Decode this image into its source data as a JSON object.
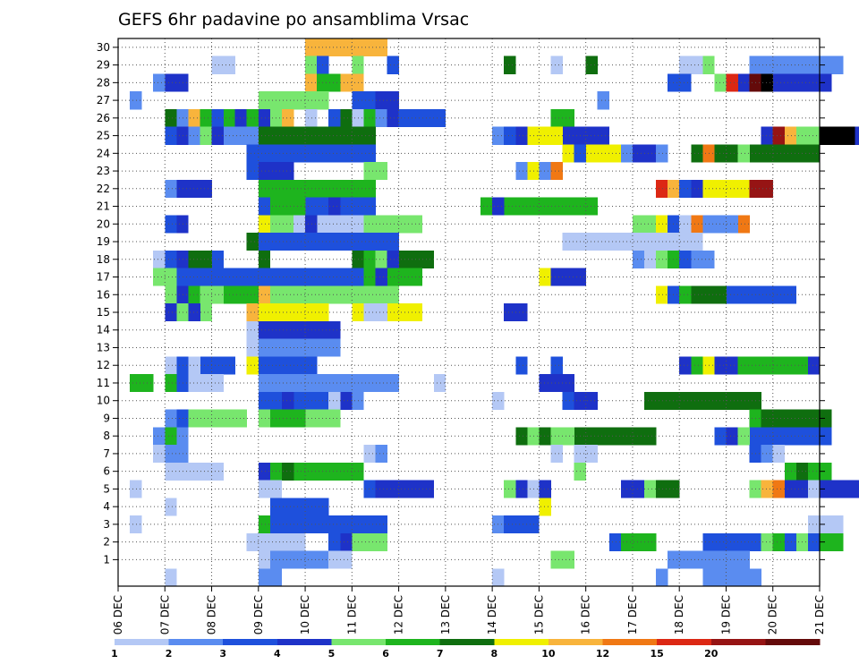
{
  "chart_data": {
    "type": "heatmap",
    "title": "GEFS 6hr padavine po ansamblima Vrsac",
    "xlabel": "",
    "ylabel": "",
    "x_ticks": [
      "06 DEC",
      "07 DEC",
      "08 DEC",
      "09 DEC",
      "10 DEC",
      "11 DEC",
      "12 DEC",
      "13 DEC",
      "14 DEC",
      "15 DEC",
      "16 DEC",
      "17 DEC",
      "18 DEC",
      "19 DEC",
      "20 DEC",
      "21 DEC"
    ],
    "y_ticks": [
      1,
      2,
      3,
      4,
      5,
      6,
      7,
      8,
      9,
      10,
      11,
      12,
      13,
      14,
      15,
      16,
      17,
      18,
      19,
      20,
      21,
      22,
      23,
      24,
      25,
      26,
      27,
      28,
      29,
      30
    ],
    "x_range_days": [
      0,
      15
    ],
    "time_step_hours": 6,
    "y_range": [
      0,
      30
    ],
    "grid": "dotted",
    "colorbar": {
      "levels": [
        1,
        2,
        3,
        4,
        5,
        6,
        7,
        8,
        10,
        12,
        15,
        20
      ],
      "colors": [
        "#b4c8f5",
        "#5a8cf0",
        "#1e50dc",
        "#1e32c8",
        "#78e66e",
        "#1eb41e",
        "#0f6e0f",
        "#f0f000",
        "#f8b43c",
        "#f07814",
        "#dc2814",
        "#961414",
        "#640a0a"
      ]
    },
    "cells": [
      [
        30,
        9,
        4,
        7
      ],
      [
        30,
        9,
        4.25,
        1
      ],
      [
        29,
        1,
        2,
        1
      ],
      [
        29,
        1,
        2.25,
        1
      ],
      [
        29,
        9,
        4,
        2
      ],
      [
        29,
        5,
        4,
        1
      ],
      [
        29,
        3,
        5.75,
        1
      ],
      [
        29,
        3,
        4.25,
        1
      ],
      [
        29,
        5,
        5,
        1
      ],
      [
        29,
        7,
        8.25,
        1
      ],
      [
        29,
        1,
        9.25,
        1
      ],
      [
        29,
        7,
        10,
        1
      ],
      [
        29,
        1,
        12,
        2
      ],
      [
        29,
        5,
        12.5,
        1
      ],
      [
        29,
        2,
        13.5,
        6
      ],
      [
        29,
        2,
        13.75,
        7
      ],
      [
        28,
        2,
        0.75,
        2
      ],
      [
        28,
        4,
        1,
        2
      ],
      [
        28,
        9,
        4,
        5
      ],
      [
        28,
        6,
        4.25,
        2
      ],
      [
        28,
        3,
        11.75,
        2
      ],
      [
        28,
        5,
        12.75,
        1
      ],
      [
        28,
        4,
        13,
        9
      ],
      [
        28,
        11,
        13,
        1
      ],
      [
        28,
        13,
        13.5,
        1
      ],
      [
        28,
        14,
        13.75,
        1
      ],
      [
        27,
        2,
        0.25,
        1
      ],
      [
        27,
        5,
        3,
        6
      ],
      [
        27,
        3,
        5,
        3
      ],
      [
        27,
        4,
        5.5,
        1
      ],
      [
        27,
        4,
        5.75,
        1
      ],
      [
        27,
        2,
        10.25,
        1
      ],
      [
        26,
        7,
        1,
        1
      ],
      [
        26,
        2,
        1.25,
        3
      ],
      [
        26,
        9,
        1.5,
        9
      ],
      [
        26,
        6,
        1.75,
        3
      ],
      [
        26,
        3,
        2,
        1
      ],
      [
        26,
        4,
        2.5,
        1
      ],
      [
        26,
        6,
        2.75,
        1
      ],
      [
        26,
        4,
        3,
        1
      ],
      [
        26,
        5,
        3.25,
        1
      ],
      [
        26,
        1,
        4,
        1
      ],
      [
        26,
        3,
        4.5,
        10
      ],
      [
        26,
        7,
        4.75,
        5
      ],
      [
        26,
        1,
        5,
        1
      ],
      [
        26,
        6,
        5.25,
        1
      ],
      [
        26,
        2,
        5.5,
        1
      ],
      [
        26,
        4,
        5.75,
        2
      ],
      [
        26,
        3,
        6,
        3
      ],
      [
        26,
        6,
        9.25,
        2
      ],
      [
        25,
        3,
        1,
        1
      ],
      [
        25,
        4,
        1.25,
        1
      ],
      [
        25,
        2,
        1.5,
        8
      ],
      [
        25,
        5,
        1.75,
        1
      ],
      [
        25,
        4,
        2,
        1
      ],
      [
        25,
        7,
        3,
        10
      ],
      [
        25,
        2,
        8,
        1
      ],
      [
        25,
        3,
        8.25,
        1
      ],
      [
        25,
        4,
        8.5,
        8
      ],
      [
        25,
        8,
        8.75,
        3
      ],
      [
        25,
        4,
        13.75,
        10
      ],
      [
        25,
        12,
        14,
        6
      ],
      [
        25,
        9,
        14.25,
        3
      ],
      [
        25,
        5,
        14.5,
        2
      ],
      [
        25,
        16,
        15,
        3
      ],
      [
        24,
        3,
        2.75,
        2
      ],
      [
        24,
        3,
        3,
        10
      ],
      [
        24,
        8,
        9.5,
        6
      ],
      [
        24,
        3,
        9.75,
        1
      ],
      [
        24,
        2,
        10.75,
        1
      ],
      [
        24,
        4,
        11,
        2
      ],
      [
        24,
        2,
        11.5,
        1
      ],
      [
        24,
        7,
        12.25,
        11
      ],
      [
        24,
        10,
        12.5,
        1
      ],
      [
        24,
        5,
        13.25,
        1
      ],
      [
        23,
        3,
        2.75,
        1
      ],
      [
        23,
        4,
        3,
        3
      ],
      [
        23,
        5,
        5.25,
        2
      ],
      [
        23,
        2,
        8.5,
        1
      ],
      [
        23,
        8,
        8.75,
        3
      ],
      [
        23,
        2,
        9,
        1
      ],
      [
        23,
        10,
        9.25,
        1
      ],
      [
        22,
        2,
        1,
        1
      ],
      [
        22,
        4,
        1.25,
        3
      ],
      [
        22,
        6,
        3,
        10
      ],
      [
        22,
        11,
        11.5,
        3
      ],
      [
        22,
        9,
        11.75,
        2
      ],
      [
        22,
        3,
        12,
        1
      ],
      [
        22,
        4,
        12.25,
        2
      ],
      [
        22,
        8,
        12.5,
        5
      ],
      [
        22,
        12,
        13.5,
        2
      ],
      [
        21,
        3,
        3,
        10
      ],
      [
        21,
        6,
        3.25,
        3
      ],
      [
        21,
        4,
        4.5,
        2
      ],
      [
        21,
        3,
        4.75,
        1
      ],
      [
        21,
        6,
        7.75,
        10
      ],
      [
        21,
        4,
        8,
        1
      ],
      [
        20,
        3,
        1,
        1
      ],
      [
        20,
        4,
        1.25,
        1
      ],
      [
        20,
        8,
        3,
        3
      ],
      [
        20,
        5,
        3.25,
        13
      ],
      [
        20,
        5,
        3.5,
        11
      ],
      [
        20,
        1,
        3.75,
        6
      ],
      [
        20,
        4,
        4,
        1
      ],
      [
        20,
        5,
        11,
        1
      ],
      [
        20,
        5,
        11.25,
        5
      ],
      [
        20,
        8,
        11.5,
        3
      ],
      [
        20,
        3,
        11.75,
        2
      ],
      [
        20,
        1,
        12,
        3
      ],
      [
        20,
        10,
        12.25,
        5
      ],
      [
        20,
        2,
        12.5,
        3
      ],
      [
        19,
        7,
        2.75,
        2
      ],
      [
        19,
        3,
        3,
        12
      ],
      [
        19,
        1,
        9.5,
        5
      ],
      [
        19,
        1,
        9.75,
        11
      ],
      [
        19,
        1,
        10,
        1
      ],
      [
        18,
        1,
        0.75,
        2
      ],
      [
        18,
        3,
        1,
        5
      ],
      [
        18,
        4,
        1.25,
        1
      ],
      [
        18,
        7,
        1.5,
        2
      ],
      [
        18,
        7,
        3,
        1
      ],
      [
        18,
        7,
        5,
        7
      ],
      [
        18,
        6,
        5.25,
        2
      ],
      [
        18,
        5,
        5.5,
        2
      ],
      [
        18,
        4,
        5.75,
        1
      ],
      [
        18,
        2,
        11,
        3
      ],
      [
        18,
        1,
        11.25,
        2
      ],
      [
        18,
        5,
        11.5,
        1
      ],
      [
        18,
        6,
        11.75,
        1
      ],
      [
        18,
        3,
        12,
        1
      ],
      [
        18,
        2,
        12.25,
        2
      ],
      [
        17,
        5,
        0.75,
        2
      ],
      [
        17,
        5,
        1,
        3
      ],
      [
        17,
        3,
        1.25,
        7
      ],
      [
        17,
        3,
        3,
        10
      ],
      [
        17,
        3,
        5,
        3
      ],
      [
        17,
        6,
        5.25,
        5
      ],
      [
        17,
        4,
        5.5,
        1
      ],
      [
        17,
        8,
        9,
        2
      ],
      [
        17,
        4,
        9.25,
        3
      ],
      [
        16,
        5,
        1,
        1
      ],
      [
        16,
        4,
        1.25,
        6
      ],
      [
        16,
        6,
        1.5,
        8
      ],
      [
        16,
        5,
        1.75,
        2
      ],
      [
        16,
        9,
        3,
        12
      ],
      [
        16,
        5,
        3.25,
        11
      ],
      [
        16,
        5,
        3.5,
        1
      ],
      [
        16,
        8,
        11.5,
        10
      ],
      [
        16,
        3,
        11.75,
        11
      ],
      [
        16,
        6,
        12,
        1
      ],
      [
        16,
        7,
        12.25,
        3
      ],
      [
        15,
        4,
        1,
        1
      ],
      [
        15,
        5,
        1.25,
        3
      ],
      [
        15,
        4,
        1.5,
        1
      ],
      [
        15,
        9,
        2.75,
        5
      ],
      [
        15,
        8,
        3,
        6
      ],
      [
        15,
        8,
        5,
        6
      ],
      [
        15,
        1,
        5.25,
        2
      ],
      [
        15,
        4,
        8.25,
        2
      ],
      [
        14,
        1,
        2.75,
        5
      ],
      [
        14,
        4,
        3,
        7
      ],
      [
        13,
        1,
        2.75,
        6
      ],
      [
        13,
        2,
        3,
        7
      ],
      [
        12,
        1,
        1,
        2
      ],
      [
        12,
        3,
        1.25,
        5
      ],
      [
        12,
        1,
        1.5,
        1
      ],
      [
        12,
        8,
        2.75,
        1
      ],
      [
        12,
        3,
        3,
        5
      ],
      [
        12,
        3,
        8.5,
        1
      ],
      [
        12,
        3,
        9.25,
        1
      ],
      [
        12,
        4,
        12,
        7
      ],
      [
        12,
        6,
        12.25,
        11
      ],
      [
        12,
        8,
        12.5,
        10
      ],
      [
        12,
        4,
        12.75,
        9
      ],
      [
        12,
        6,
        13.25,
        1
      ],
      [
        12,
        6,
        13.5,
        5
      ],
      [
        11,
        6,
        0.25,
        2
      ],
      [
        11,
        6,
        1,
        1
      ],
      [
        11,
        3,
        1.25,
        3
      ],
      [
        11,
        1,
        1.5,
        3
      ],
      [
        11,
        2,
        3,
        12
      ],
      [
        11,
        2,
        3.25,
        2
      ],
      [
        11,
        1,
        6.75,
        1
      ],
      [
        11,
        4,
        9,
        1
      ],
      [
        11,
        4,
        9.25,
        1
      ],
      [
        11,
        4,
        9.5,
        1
      ],
      [
        10,
        3,
        3,
        1
      ],
      [
        10,
        3,
        3.25,
        5
      ],
      [
        10,
        4,
        3.5,
        1
      ],
      [
        10,
        1,
        4.5,
        1
      ],
      [
        10,
        4,
        4.75,
        2
      ],
      [
        10,
        2,
        5,
        1
      ],
      [
        10,
        1,
        8,
        1
      ],
      [
        10,
        3,
        9.5,
        1
      ],
      [
        10,
        4,
        9.75,
        2
      ],
      [
        10,
        7,
        11.25,
        10
      ],
      [
        9,
        2,
        1,
        1
      ],
      [
        9,
        3,
        1.25,
        6
      ],
      [
        9,
        5,
        1.5,
        5
      ],
      [
        9,
        5,
        3,
        7
      ],
      [
        9,
        6,
        3.25,
        3
      ],
      [
        9,
        6,
        13.5,
        2
      ],
      [
        9,
        7,
        13.75,
        6
      ],
      [
        8,
        2,
        0.75,
        3
      ],
      [
        8,
        6,
        1,
        1
      ],
      [
        8,
        7,
        8.5,
        12
      ],
      [
        8,
        5,
        8.75,
        1
      ],
      [
        8,
        5,
        9.25,
        2
      ],
      [
        8,
        3,
        12.75,
        10
      ],
      [
        8,
        4,
        13,
        2
      ],
      [
        8,
        5,
        13.25,
        1
      ],
      [
        7,
        1,
        0.75,
        1
      ],
      [
        7,
        2,
        1,
        2
      ],
      [
        7,
        1,
        5.25,
        1
      ],
      [
        7,
        2,
        5.5,
        1
      ],
      [
        7,
        1,
        9.25,
        1
      ],
      [
        7,
        1,
        9.75,
        2
      ],
      [
        7,
        3,
        13.5,
        1
      ],
      [
        7,
        2,
        13.75,
        1
      ],
      [
        7,
        1,
        14,
        1
      ],
      [
        6,
        1,
        1,
        5
      ],
      [
        6,
        4,
        3,
        2
      ],
      [
        6,
        6,
        3.25,
        8
      ],
      [
        6,
        7,
        3.5,
        1
      ],
      [
        6,
        5,
        9.75,
        1
      ],
      [
        6,
        6,
        14.25,
        2
      ],
      [
        6,
        7,
        14.5,
        1
      ],
      [
        6,
        6,
        14.75,
        2
      ],
      [
        5,
        1,
        0.25,
        1
      ],
      [
        5,
        1,
        3,
        2
      ],
      [
        5,
        3,
        5.25,
        2
      ],
      [
        5,
        4,
        5.5,
        5
      ],
      [
        5,
        4,
        5.75,
        1
      ],
      [
        5,
        4,
        6,
        1
      ],
      [
        5,
        4,
        6.25,
        1
      ],
      [
        5,
        5,
        8.25,
        1
      ],
      [
        5,
        4,
        8.5,
        3
      ],
      [
        5,
        1,
        8.75,
        1
      ],
      [
        5,
        4,
        10.75,
        5
      ],
      [
        5,
        5,
        11.25,
        2
      ],
      [
        5,
        7,
        11.5,
        2
      ],
      [
        5,
        5,
        13.5,
        1
      ],
      [
        5,
        9,
        13.75,
        3
      ],
      [
        5,
        10,
        14,
        3
      ],
      [
        5,
        4,
        14.25,
        1
      ],
      [
        5,
        4,
        14.5,
        6
      ],
      [
        5,
        1,
        14.75,
        1
      ],
      [
        4,
        1,
        1,
        1
      ],
      [
        4,
        3,
        3.25,
        5
      ],
      [
        4,
        3,
        3.5,
        2
      ],
      [
        4,
        8,
        9,
        1
      ],
      [
        3,
        1,
        0.25,
        1
      ],
      [
        3,
        6,
        3,
        1
      ],
      [
        3,
        3,
        3.25,
        10
      ],
      [
        3,
        2,
        8,
        2
      ],
      [
        3,
        3,
        8.25,
        3
      ],
      [
        3,
        1,
        14.75,
        3
      ],
      [
        2,
        1,
        2.75,
        5
      ],
      [
        2,
        3,
        4.5,
        1
      ],
      [
        2,
        4,
        4.75,
        1
      ],
      [
        2,
        5,
        5,
        3
      ],
      [
        2,
        5,
        5.25,
        2
      ],
      [
        2,
        3,
        10.5,
        2
      ],
      [
        2,
        6,
        10.75,
        3
      ],
      [
        2,
        3,
        12.5,
        2
      ],
      [
        2,
        3,
        13,
        2
      ],
      [
        2,
        3,
        13.25,
        2
      ],
      [
        2,
        5,
        13.75,
        2
      ],
      [
        2,
        6,
        14,
        6
      ],
      [
        2,
        3,
        14.25,
        2
      ],
      [
        2,
        5,
        14.5,
        1
      ],
      [
        2,
        3,
        14.75,
        1
      ],
      [
        1,
        1,
        3,
        1
      ],
      [
        1,
        2,
        3.25,
        7
      ],
      [
        1,
        1,
        4.5,
        1
      ],
      [
        1,
        1,
        4.75,
        1
      ],
      [
        1,
        5,
        9.25,
        2
      ],
      [
        1,
        2,
        11.75,
        2
      ],
      [
        1,
        2,
        12,
        6
      ],
      [
        1,
        2,
        12.25,
        1
      ],
      [
        0,
        1,
        1,
        1
      ],
      [
        0,
        2,
        3,
        2
      ],
      [
        0,
        1,
        8,
        1
      ],
      [
        0,
        2,
        11.5,
        1
      ],
      [
        0,
        2,
        12.5,
        5
      ]
    ]
  }
}
